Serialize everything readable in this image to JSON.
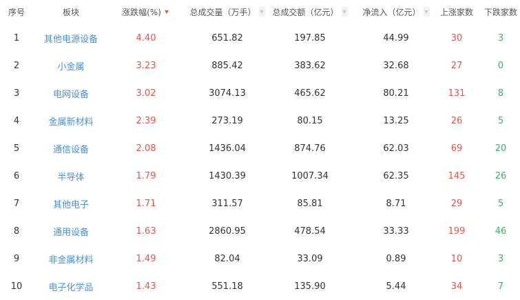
{
  "colors": {
    "up": "#e4534a",
    "down": "#3fae6a",
    "link": "#4a8fd6"
  },
  "headers": [
    "序号",
    "板块",
    "涨跌幅(%)",
    "总成交量（万手）",
    "总成交额（亿元）",
    "净流入（亿元）",
    "上涨家数",
    "下跌家数"
  ],
  "sort": {
    "active_column": "涨跌幅(%)",
    "direction": "desc"
  },
  "rows": [
    [
      "1",
      "其他电源设备",
      "4.40",
      "651.82",
      "197.85",
      "44.99",
      "30",
      "3"
    ],
    [
      "2",
      "小金属",
      "3.23",
      "885.42",
      "383.62",
      "32.68",
      "27",
      "0"
    ],
    [
      "3",
      "电网设备",
      "3.02",
      "3074.13",
      "465.62",
      "80.21",
      "131",
      "8"
    ],
    [
      "4",
      "金属新材料",
      "2.39",
      "273.19",
      "80.15",
      "13.25",
      "26",
      "5"
    ],
    [
      "5",
      "通信设备",
      "2.08",
      "1436.04",
      "874.76",
      "62.03",
      "69",
      "20"
    ],
    [
      "6",
      "半导体",
      "1.79",
      "1430.39",
      "1007.34",
      "62.35",
      "145",
      "26"
    ],
    [
      "7",
      "其他电子",
      "1.71",
      "311.57",
      "85.81",
      "8.71",
      "29",
      "5"
    ],
    [
      "8",
      "通用设备",
      "1.63",
      "2860.95",
      "478.54",
      "33.33",
      "199",
      "46"
    ],
    [
      "9",
      "非金属材料",
      "1.49",
      "82.04",
      "33.09",
      "0.89",
      "10",
      "3"
    ],
    [
      "10",
      "电子化学品",
      "1.43",
      "551.18",
      "135.90",
      "5.44",
      "34",
      "7"
    ]
  ]
}
